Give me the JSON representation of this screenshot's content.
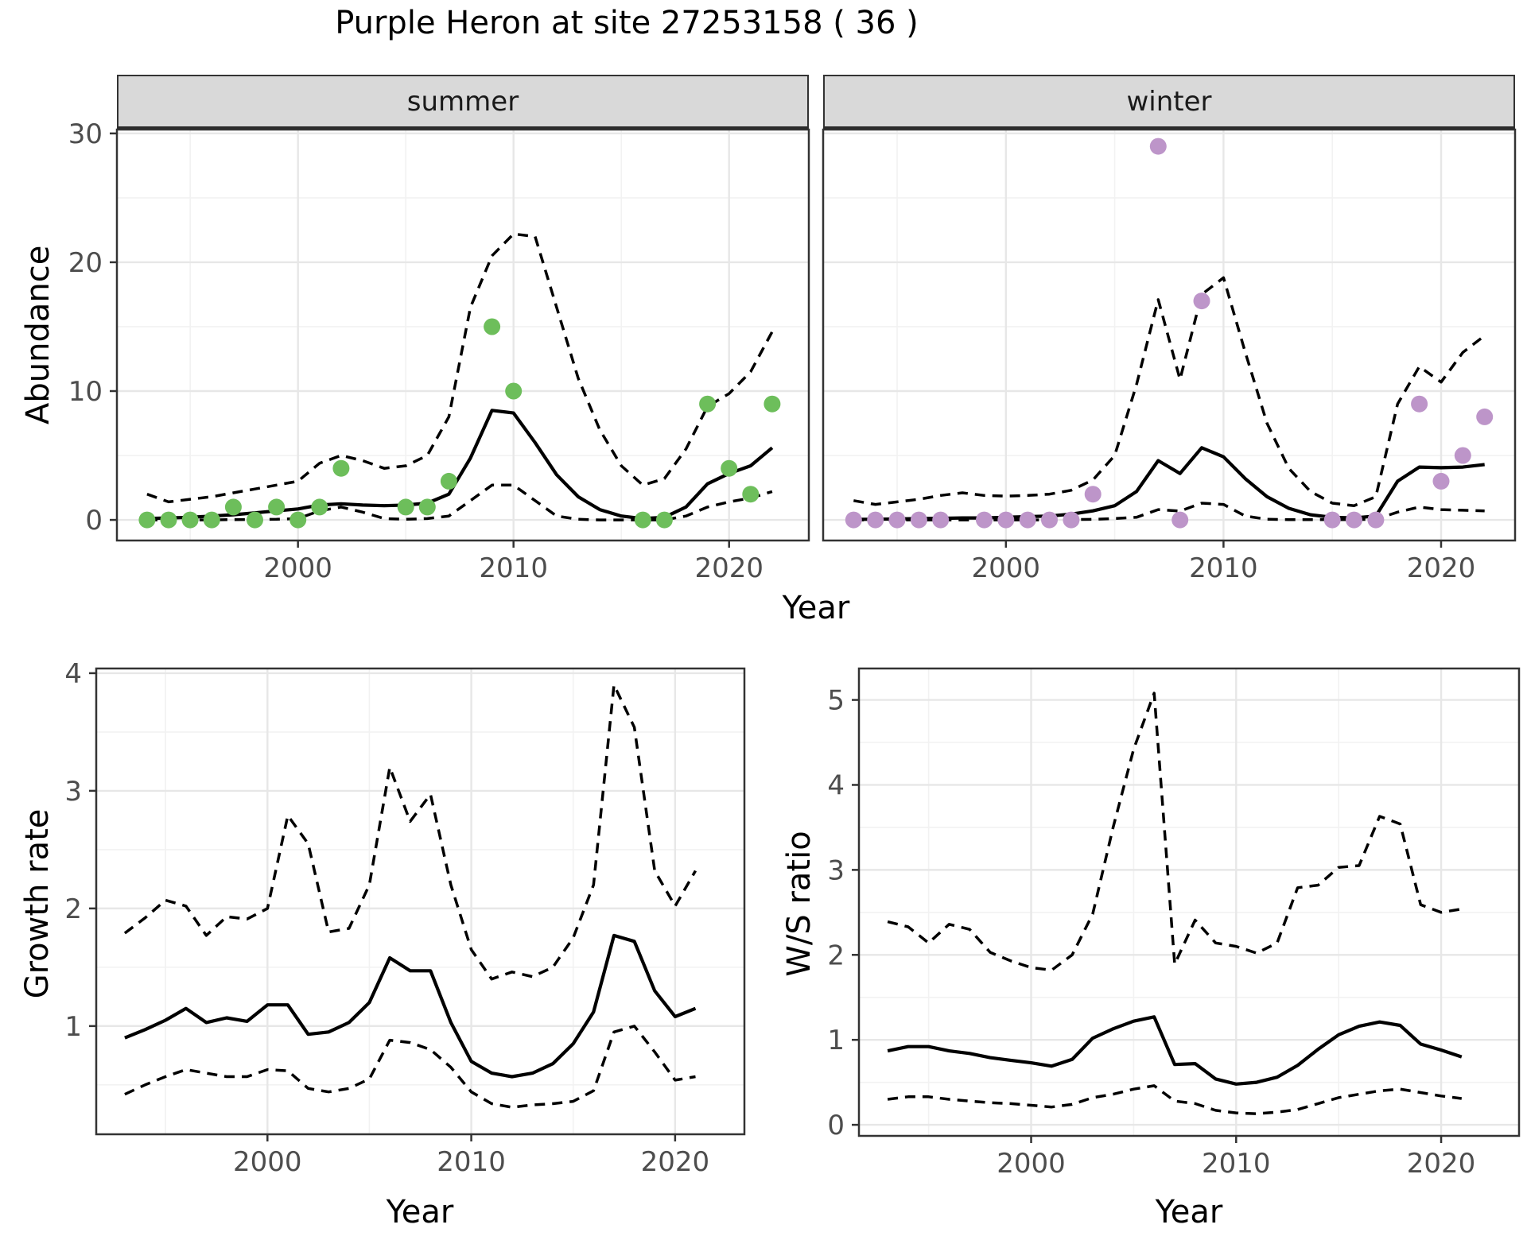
{
  "title": "Purple Heron at site 27253158 ( 36 )",
  "axis_titles": {
    "abundance": "Abundance",
    "year_top": "Year",
    "growth": "Growth rate",
    "ws": "W/S ratio",
    "year_growth": "Year",
    "year_ws": "Year"
  },
  "facets": {
    "summer": "summer",
    "winter": "winter"
  },
  "colors": {
    "summer_point": "#6dbe5b",
    "winter_point": "#bd95c9",
    "line": "#000000",
    "strip_bg": "#d9d9d9",
    "panel_border": "#333333",
    "grid_major": "#e7e7e7",
    "grid_minor": "#f2f2f2",
    "tick_text": "#4d4d4d"
  },
  "chart_data": [
    {
      "id": "abundance-summer",
      "type": "line",
      "title": "summer",
      "xlabel": "Year",
      "ylabel": "Abundance",
      "xlim": [
        1991.6,
        2023.7
      ],
      "ylim": [
        -1.6,
        30.3
      ],
      "xticks": [
        2000,
        2010,
        2020
      ],
      "xticks_minor": [
        1995,
        2005,
        2015
      ],
      "yticks": [
        0,
        10,
        20,
        30
      ],
      "yticks_minor": [
        5,
        15,
        25
      ],
      "show_ytick_labels": true,
      "x": [
        1993,
        1994,
        1995,
        1996,
        1997,
        1998,
        1999,
        2000,
        2001,
        2002,
        2003,
        2004,
        2005,
        2006,
        2007,
        2008,
        2009,
        2010,
        2011,
        2012,
        2013,
        2014,
        2015,
        2016,
        2017,
        2018,
        2019,
        2020,
        2021,
        2022
      ],
      "series": [
        {
          "name": "mean",
          "dash": false,
          "values": [
            0.1,
            0.15,
            0.2,
            0.3,
            0.4,
            0.55,
            0.7,
            0.85,
            1.15,
            1.25,
            1.15,
            1.1,
            1.15,
            1.3,
            2.0,
            4.8,
            8.5,
            8.3,
            6.0,
            3.5,
            1.8,
            0.8,
            0.3,
            0.1,
            0.2,
            1.0,
            2.8,
            3.6,
            4.2,
            5.6
          ]
        },
        {
          "name": "ci-upper",
          "dash": true,
          "values": [
            2.0,
            1.4,
            1.6,
            1.8,
            2.1,
            2.4,
            2.7,
            3.0,
            4.4,
            5.0,
            4.6,
            4.0,
            4.2,
            5.0,
            8.0,
            16.5,
            20.5,
            22.2,
            22.0,
            16.5,
            11.0,
            7.0,
            4.2,
            2.7,
            3.2,
            5.5,
            8.8,
            9.8,
            11.5,
            14.6
          ]
        },
        {
          "name": "ci-lower",
          "dash": true,
          "values": [
            0,
            0,
            0,
            0,
            0.02,
            0.03,
            0.05,
            0.1,
            0.7,
            1.0,
            0.6,
            0.1,
            0.05,
            0.1,
            0.3,
            1.5,
            2.7,
            2.7,
            1.5,
            0.3,
            0.05,
            0,
            0,
            0,
            0,
            0.3,
            1.0,
            1.4,
            1.7,
            2.2
          ]
        }
      ],
      "points": {
        "name": "summer-observations",
        "color_key": "summer_point",
        "x": [
          1993,
          1994,
          1995,
          1996,
          1997,
          1998,
          1999,
          2000,
          2001,
          2002,
          2005,
          2006,
          2007,
          2009,
          2010,
          2016,
          2017,
          2019,
          2020,
          2021,
          2022
        ],
        "y": [
          0,
          0,
          0,
          0,
          1,
          0,
          1,
          0,
          1,
          4,
          1,
          1,
          3,
          15,
          10,
          0,
          0,
          9,
          4,
          2,
          9
        ]
      }
    },
    {
      "id": "abundance-winter",
      "type": "line",
      "title": "winter",
      "xlabel": "Year",
      "ylabel": "Abundance",
      "xlim": [
        1991.6,
        2023.4
      ],
      "ylim": [
        -1.6,
        30.3
      ],
      "xticks": [
        2000,
        2010,
        2020
      ],
      "xticks_minor": [
        1995,
        2005,
        2015
      ],
      "yticks": [
        0,
        10,
        20,
        30
      ],
      "yticks_minor": [
        5,
        15,
        25
      ],
      "show_ytick_labels": false,
      "x": [
        1993,
        1994,
        1995,
        1996,
        1997,
        1998,
        1999,
        2000,
        2001,
        2002,
        2003,
        2004,
        2005,
        2006,
        2007,
        2008,
        2009,
        2010,
        2011,
        2012,
        2013,
        2014,
        2015,
        2016,
        2017,
        2018,
        2019,
        2020,
        2021,
        2022
      ],
      "series": [
        {
          "name": "mean",
          "dash": false,
          "values": [
            0.05,
            0.05,
            0.08,
            0.1,
            0.12,
            0.15,
            0.15,
            0.2,
            0.25,
            0.3,
            0.45,
            0.7,
            1.1,
            2.2,
            4.6,
            3.6,
            5.6,
            4.9,
            3.2,
            1.8,
            0.9,
            0.4,
            0.2,
            0.15,
            0.3,
            3.0,
            4.1,
            4.05,
            4.1,
            4.3
          ]
        },
        {
          "name": "ci-upper",
          "dash": true,
          "values": [
            1.5,
            1.2,
            1.4,
            1.6,
            1.9,
            2.1,
            1.9,
            1.85,
            1.9,
            2.0,
            2.3,
            3.1,
            5.0,
            10.5,
            17.1,
            10.9,
            17.5,
            18.8,
            13.0,
            7.5,
            4.0,
            2.2,
            1.3,
            1.1,
            1.8,
            9.0,
            11.9,
            10.7,
            13.0,
            14.3
          ]
        },
        {
          "name": "ci-lower",
          "dash": true,
          "values": [
            0,
            0,
            0,
            0,
            0,
            0,
            0,
            0,
            0,
            0,
            0.02,
            0.05,
            0.1,
            0.2,
            0.8,
            0.68,
            1.3,
            1.2,
            0.3,
            0.05,
            0.02,
            0.02,
            0.02,
            0.02,
            0.05,
            0.6,
            1.0,
            0.8,
            0.75,
            0.7
          ]
        }
      ],
      "points": {
        "name": "winter-observations",
        "color_key": "winter_point",
        "x": [
          1993,
          1994,
          1995,
          1996,
          1997,
          1999,
          2000,
          2001,
          2002,
          2003,
          2004,
          2007,
          2008,
          2009,
          2015,
          2016,
          2017,
          2019,
          2020,
          2021,
          2022
        ],
        "y": [
          0,
          0,
          0,
          0,
          0,
          0,
          0,
          0,
          0,
          0,
          2,
          29,
          0,
          17,
          0,
          0,
          0,
          9,
          3,
          5,
          8
        ]
      }
    },
    {
      "id": "growth-rate",
      "type": "line",
      "title": "",
      "xlabel": "Year",
      "ylabel": "Growth rate",
      "xlim": [
        1991.6,
        2023.4
      ],
      "ylim": [
        0.08,
        4.04
      ],
      "xticks": [
        2000,
        2010,
        2020
      ],
      "xticks_minor": [
        1995,
        2005,
        2015
      ],
      "yticks": [
        1,
        2,
        3,
        4
      ],
      "yticks_minor": [
        0.5,
        1.5,
        2.5,
        3.5
      ],
      "show_ytick_labels": true,
      "x": [
        1993,
        1994,
        1995,
        1996,
        1997,
        1998,
        1999,
        2000,
        2001,
        2002,
        2003,
        2004,
        2005,
        2006,
        2007,
        2008,
        2009,
        2010,
        2011,
        2012,
        2013,
        2014,
        2015,
        2016,
        2017,
        2018,
        2019,
        2020,
        2021
      ],
      "series": [
        {
          "name": "mean",
          "dash": false,
          "values": [
            0.9,
            0.97,
            1.05,
            1.15,
            1.03,
            1.07,
            1.04,
            1.18,
            1.18,
            0.93,
            0.95,
            1.03,
            1.2,
            1.58,
            1.47,
            1.47,
            1.03,
            0.7,
            0.6,
            0.57,
            0.6,
            0.68,
            0.85,
            1.12,
            1.77,
            1.72,
            1.3,
            1.08,
            1.15
          ]
        },
        {
          "name": "ci-upper",
          "dash": true,
          "values": [
            1.79,
            1.92,
            2.07,
            2.02,
            1.77,
            1.93,
            1.91,
            2.0,
            2.79,
            2.55,
            1.8,
            1.83,
            2.2,
            3.2,
            2.74,
            2.97,
            2.2,
            1.65,
            1.4,
            1.46,
            1.42,
            1.5,
            1.75,
            2.2,
            3.9,
            3.54,
            2.32,
            2.02,
            2.32
          ]
        },
        {
          "name": "ci-lower",
          "dash": true,
          "values": [
            0.42,
            0.5,
            0.57,
            0.63,
            0.6,
            0.57,
            0.57,
            0.63,
            0.62,
            0.47,
            0.44,
            0.47,
            0.55,
            0.88,
            0.86,
            0.8,
            0.65,
            0.44,
            0.34,
            0.31,
            0.33,
            0.34,
            0.36,
            0.45,
            0.95,
            1.0,
            0.78,
            0.54,
            0.57
          ]
        }
      ],
      "points": null
    },
    {
      "id": "ws-ratio",
      "type": "line",
      "title": "",
      "xlabel": "Year",
      "ylabel": "W/S ratio",
      "xlim": [
        1991.6,
        2023.8
      ],
      "ylim": [
        -0.13,
        5.37
      ],
      "xticks": [
        2000,
        2010,
        2020
      ],
      "xticks_minor": [
        1995,
        2005,
        2015
      ],
      "yticks": [
        0,
        1,
        2,
        3,
        4,
        5
      ],
      "yticks_minor": [
        0.5,
        1.5,
        2.5,
        3.5,
        4.5
      ],
      "show_ytick_labels": true,
      "x": [
        1993,
        1994,
        1995,
        1996,
        1997,
        1998,
        1999,
        2000,
        2001,
        2002,
        2003,
        2004,
        2005,
        2006,
        2007,
        2008,
        2009,
        2010,
        2011,
        2012,
        2013,
        2014,
        2015,
        2016,
        2017,
        2018,
        2019,
        2020,
        2021
      ],
      "series": [
        {
          "name": "mean",
          "dash": false,
          "values": [
            0.87,
            0.92,
            0.92,
            0.87,
            0.84,
            0.79,
            0.76,
            0.73,
            0.69,
            0.77,
            1.02,
            1.13,
            1.22,
            1.27,
            0.71,
            0.72,
            0.54,
            0.48,
            0.5,
            0.56,
            0.7,
            0.89,
            1.06,
            1.16,
            1.21,
            1.17,
            0.95,
            0.88,
            0.8
          ]
        },
        {
          "name": "ci-upper",
          "dash": true,
          "values": [
            2.39,
            2.33,
            2.14,
            2.36,
            2.3,
            2.03,
            1.93,
            1.85,
            1.82,
            2.0,
            2.48,
            3.5,
            4.42,
            5.08,
            1.89,
            2.41,
            2.14,
            2.1,
            2.02,
            2.14,
            2.79,
            2.82,
            3.03,
            3.05,
            3.63,
            3.54,
            2.59,
            2.5,
            2.54
          ]
        },
        {
          "name": "ci-lower",
          "dash": true,
          "values": [
            0.3,
            0.33,
            0.33,
            0.3,
            0.28,
            0.26,
            0.25,
            0.23,
            0.21,
            0.24,
            0.32,
            0.36,
            0.42,
            0.46,
            0.28,
            0.25,
            0.17,
            0.14,
            0.13,
            0.15,
            0.18,
            0.25,
            0.32,
            0.36,
            0.4,
            0.42,
            0.38,
            0.34,
            0.31
          ]
        }
      ],
      "points": null
    }
  ]
}
